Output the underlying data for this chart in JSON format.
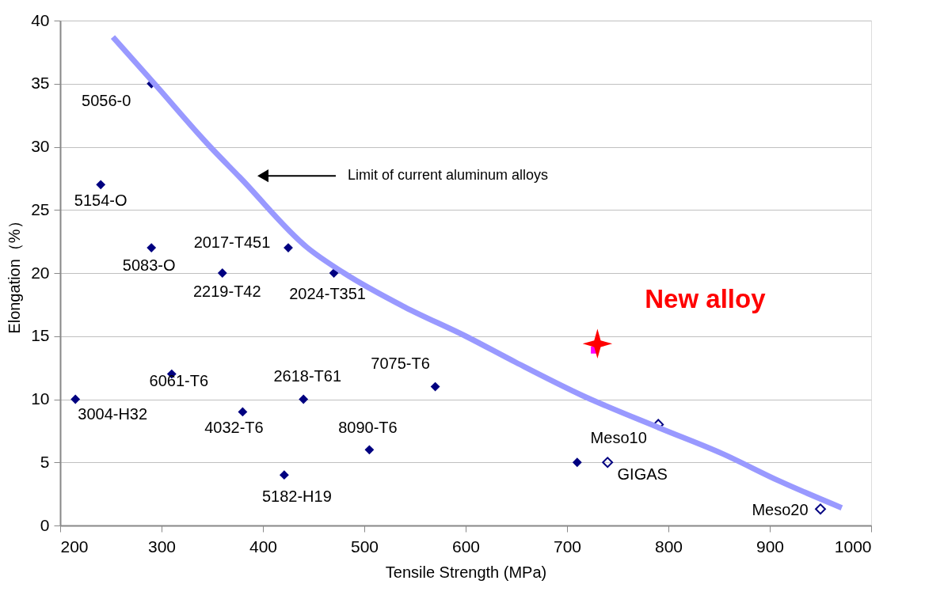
{
  "chart_data": {
    "type": "scatter",
    "xlabel": "Tensile Strength (MPa)",
    "ylabel": "Elongation（%）",
    "xlim": [
      200,
      1000
    ],
    "xticks": [
      200,
      300,
      400,
      500,
      600,
      700,
      800,
      900,
      1000
    ],
    "ylim": [
      0,
      40
    ],
    "yticks": [
      0,
      5,
      10,
      15,
      20,
      25,
      30,
      35,
      40
    ],
    "grid": "y",
    "series": [
      {
        "marker": "diamond",
        "color": "#000080",
        "x": [
          290,
          240,
          290,
          360,
          425,
          470,
          310,
          215,
          380,
          440,
          421,
          505,
          570,
          710
        ],
        "values": [
          35,
          27,
          22,
          20,
          22,
          20,
          12,
          10,
          9,
          10,
          4,
          6,
          11,
          5
        ]
      },
      {
        "marker": "diamond",
        "color": "#000080",
        "x": [
          790,
          740,
          950
        ],
        "values": [
          8,
          5,
          1.3
        ]
      },
      {
        "marker": "square",
        "color": "#ff00ff",
        "x": [
          727
        ],
        "values": [
          13.9
        ]
      },
      {
        "marker": "star",
        "color": "#ff0000",
        "x": [
          730
        ],
        "values": [
          14.4
        ]
      },
      {
        "type": "line",
        "marker": "none",
        "color": "#9999ff",
        "x": [
          252,
          293,
          348,
          377,
          444,
          480,
          540,
          600,
          650,
          715,
          792,
          853,
          910,
          971
        ],
        "values": [
          38.7,
          35,
          30,
          27.6,
          22,
          20,
          17.3,
          15,
          12.9,
          10.3,
          7.7,
          5.7,
          3.5,
          1.4
        ]
      }
    ],
    "annotations": [
      {
        "text": "5056-0",
        "x": 290,
        "y": 35
      },
      {
        "text": "5154-O",
        "x": 240,
        "y": 27
      },
      {
        "text": "5083-O",
        "x": 290,
        "y": 22
      },
      {
        "text": "2219-T42",
        "x": 360,
        "y": 20
      },
      {
        "text": "2017-T451",
        "x": 425,
        "y": 22
      },
      {
        "text": "2024-T351",
        "x": 470,
        "y": 20
      },
      {
        "text": "6061-T6",
        "x": 310,
        "y": 12
      },
      {
        "text": "3004-H32",
        "x": 215,
        "y": 10
      },
      {
        "text": "4032-T6",
        "x": 380,
        "y": 9
      },
      {
        "text": "2618-T61",
        "x": 440,
        "y": 10
      },
      {
        "text": "5182-H19",
        "x": 421,
        "y": 4
      },
      {
        "text": "8090-T6",
        "x": 505,
        "y": 6
      },
      {
        "text": "7075-T6",
        "x": 570,
        "y": 11
      },
      {
        "text": "Meso10",
        "x": 790,
        "y": 8
      },
      {
        "text": "GIGAS",
        "x": 740,
        "y": 5
      },
      {
        "text": "Meso20",
        "x": 950,
        "y": 1.3
      },
      {
        "text": "New alloy",
        "x": 730,
        "y": 14.4
      },
      {
        "text": "Limit of current aluminum alloys",
        "x": 400,
        "y": 27.7
      }
    ]
  }
}
